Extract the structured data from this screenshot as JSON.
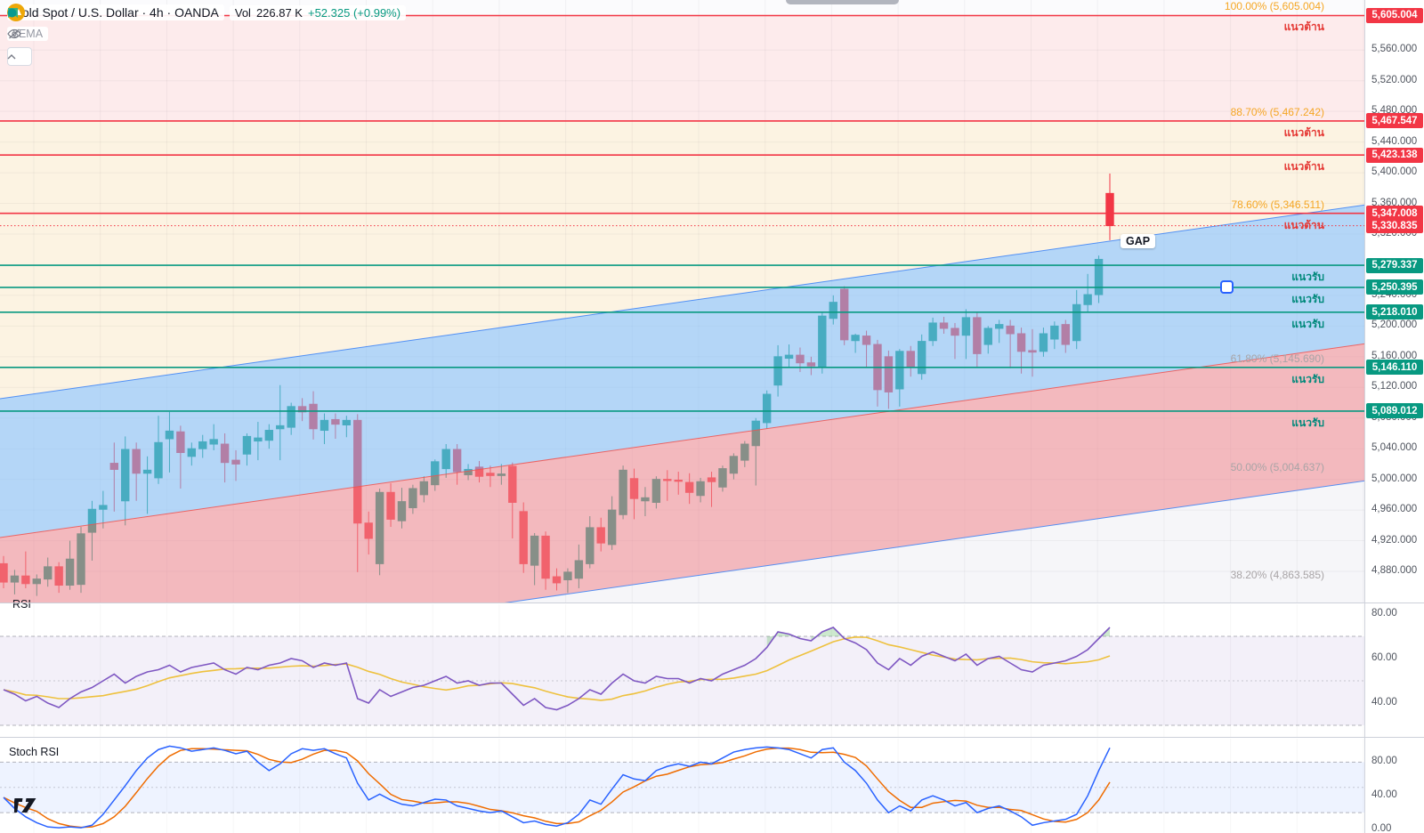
{
  "header": {
    "symbol_title": "Gold Spot / U.S. Dollar · 4h · OANDA",
    "volume_label": "Vol",
    "volume_value": "226.87 K",
    "change_text": "+52.325 (+0.99%)",
    "indicator_label": "3EMA"
  },
  "panes": {
    "rsi_title": "RSI",
    "stoch_title": "Stoch RSI"
  },
  "annotations": {
    "gap_label": "GAP",
    "resistance_label": "แนวต้าน",
    "support_label": "แนวรับ"
  },
  "colors": {
    "up": "#089981",
    "down": "#f23645",
    "resistance_line": "#f23645",
    "support_line": "#089981",
    "badge_red": "#f23645",
    "badge_green": "#089981",
    "rsi_line": "#7e57c2",
    "rsi_ma": "#eec13e",
    "stoch_k": "#2962ff",
    "stoch_d": "#ef6c00",
    "channel_blue": "rgba(125,188,245,0.55)",
    "channel_pink": "rgba(240,134,142,0.55)",
    "zone_pink": "#fdebec",
    "zone_cream": "#fcf3e2"
  },
  "price_axis": {
    "ticks": [
      5560,
      5520,
      5480,
      5440,
      5400,
      5360,
      5320,
      5240,
      5200,
      5160,
      5120,
      5080,
      5040,
      5000,
      4960,
      4920,
      4880
    ],
    "badges": [
      {
        "text": "5,605.004",
        "price": 5605.004,
        "kind": "resistance"
      },
      {
        "text": "5,467.547",
        "price": 5467.547,
        "kind": "resistance"
      },
      {
        "text": "5,423.138",
        "price": 5423.138,
        "kind": "resistance"
      },
      {
        "text": "5,347.008",
        "price": 5347.008,
        "kind": "resistance"
      },
      {
        "text": "5,330.835",
        "price": 5330.835,
        "kind": "price"
      },
      {
        "text": "5,279.337",
        "price": 5279.337,
        "kind": "support"
      },
      {
        "text": "5,250.395",
        "price": 5250.395,
        "kind": "support"
      },
      {
        "text": "5,218.010",
        "price": 5218.01,
        "kind": "support"
      },
      {
        "text": "5,146.110",
        "price": 5146.11,
        "kind": "support"
      },
      {
        "text": "5,089.012",
        "price": 5089.012,
        "kind": "support"
      }
    ]
  },
  "rsi_axis": [
    {
      "v": 80,
      "text": "80.00"
    },
    {
      "v": 60,
      "text": "60.00"
    },
    {
      "v": 40,
      "text": "40.00"
    }
  ],
  "stoch_axis": [
    {
      "v": 80,
      "text": "80.00"
    },
    {
      "v": 40,
      "text": "40.00"
    },
    {
      "v": 0,
      "text": "0.00"
    }
  ],
  "chart_data": {
    "type": "candlestick",
    "title": "Gold Spot / U.S. Dollar · 4h · OANDA",
    "visible_price_range": [
      4840,
      5625
    ],
    "resistance_levels": [
      5605.004,
      5467.547,
      5423.138,
      5347.008
    ],
    "support_levels": [
      5279.337,
      5250.395,
      5218.01,
      5146.11,
      5089.012
    ],
    "current_price": 5330.835,
    "fib_labels": [
      {
        "text": "100.00% (5,605.004)",
        "price": 5605.004,
        "tone": "orange"
      },
      {
        "text": "88.70% (5,467.242)",
        "price": 5467.242,
        "tone": "orange"
      },
      {
        "text": "78.60% (5,346.511)",
        "price": 5346.511,
        "tone": "orange"
      },
      {
        "text": "61.80% (5,145.690)",
        "price": 5145.69,
        "tone": "gray"
      },
      {
        "text": "50.00% (5,004.637)",
        "price": 5004.637,
        "tone": "gray"
      },
      {
        "text": "38.20% (4,863.585)",
        "price": 4863.585,
        "tone": "gray"
      }
    ],
    "candles": [
      [
        4890,
        4900,
        4858,
        4866
      ],
      [
        4866,
        4882,
        4850,
        4874
      ],
      [
        4874,
        4906,
        4858,
        4864
      ],
      [
        4864,
        4876,
        4848,
        4870
      ],
      [
        4870,
        4898,
        4860,
        4886
      ],
      [
        4886,
        4892,
        4852,
        4862
      ],
      [
        4862,
        4920,
        4856,
        4896
      ],
      [
        4863,
        4938,
        4852,
        4929
      ],
      [
        4931,
        4972,
        4894,
        4961
      ],
      [
        4961,
        4985,
        4936,
        4966
      ],
      [
        5021,
        5048,
        4958,
        5013
      ],
      [
        4972,
        5056,
        4940,
        5039
      ],
      [
        5039,
        5048,
        4972,
        5008
      ],
      [
        5008,
        5030,
        4955,
        5012
      ],
      [
        5002,
        5083,
        4994,
        5048
      ],
      [
        5053,
        5088,
        5009,
        5063
      ],
      [
        5062,
        5070,
        4988,
        5035
      ],
      [
        5030,
        5048,
        5018,
        5040
      ],
      [
        5040,
        5058,
        5028,
        5049
      ],
      [
        5046,
        5072,
        5038,
        5052
      ],
      [
        5046,
        5060,
        4996,
        5022
      ],
      [
        5025,
        5038,
        4998,
        5020
      ],
      [
        5033,
        5060,
        5018,
        5056
      ],
      [
        5050,
        5075,
        5025,
        5054
      ],
      [
        5051,
        5072,
        5040,
        5064
      ],
      [
        5066,
        5123,
        5025,
        5070
      ],
      [
        5068,
        5100,
        5058,
        5095
      ],
      [
        5095,
        5106,
        5076,
        5088
      ],
      [
        5098,
        5115,
        5052,
        5066
      ],
      [
        5064,
        5086,
        5046,
        5077
      ],
      [
        5078,
        5086,
        5053,
        5072
      ],
      [
        5071,
        5083,
        5055,
        5077
      ],
      [
        5077,
        5085,
        4879,
        4943
      ],
      [
        4943,
        4958,
        4902,
        4923
      ],
      [
        4890,
        4988,
        4875,
        4983
      ],
      [
        4983,
        4995,
        4938,
        4948
      ],
      [
        4946,
        4989,
        4936,
        4971
      ],
      [
        4963,
        4993,
        4955,
        4988
      ],
      [
        4980,
        5004,
        4970,
        4997
      ],
      [
        4993,
        5026,
        4985,
        5023
      ],
      [
        5014,
        5046,
        5002,
        5039
      ],
      [
        5039,
        5046,
        4993,
        5010
      ],
      [
        5006,
        5020,
        4999,
        5013
      ],
      [
        5016,
        5024,
        4996,
        5004
      ],
      [
        5008,
        5018,
        4990,
        5005
      ],
      [
        5005,
        5020,
        4993,
        5007
      ],
      [
        5017,
        5022,
        4923,
        4970
      ],
      [
        4958,
        4970,
        4878,
        4890
      ],
      [
        4888,
        4930,
        4862,
        4926
      ],
      [
        4926,
        4932,
        4856,
        4871
      ],
      [
        4873,
        4884,
        4855,
        4865
      ],
      [
        4869,
        4884,
        4852,
        4879
      ],
      [
        4871,
        4915,
        4858,
        4894
      ],
      [
        4890,
        4952,
        4884,
        4937
      ],
      [
        4937,
        4950,
        4906,
        4917
      ],
      [
        4915,
        4978,
        4908,
        4960
      ],
      [
        4954,
        5018,
        4948,
        5012
      ],
      [
        5001,
        5014,
        4948,
        4975
      ],
      [
        4972,
        4990,
        4952,
        4976
      ],
      [
        4970,
        5004,
        4962,
        5000
      ],
      [
        5000,
        5012,
        4972,
        4999
      ],
      [
        4999,
        5010,
        4980,
        4998
      ],
      [
        4996,
        5008,
        4968,
        4983
      ],
      [
        4979,
        5002,
        4970,
        4997
      ],
      [
        5002,
        5010,
        4964,
        4997
      ],
      [
        4990,
        5018,
        4984,
        5014
      ],
      [
        5008,
        5034,
        5000,
        5030
      ],
      [
        5025,
        5050,
        5016,
        5046
      ],
      [
        5044,
        5080,
        4992,
        5076
      ],
      [
        5074,
        5116,
        5066,
        5111
      ],
      [
        5123,
        5175,
        5108,
        5160
      ],
      [
        5158,
        5176,
        5146,
        5162
      ],
      [
        5162,
        5172,
        5140,
        5152
      ],
      [
        5152,
        5160,
        5136,
        5148
      ],
      [
        5147,
        5219,
        5138,
        5213
      ],
      [
        5210,
        5240,
        5202,
        5231
      ],
      [
        5248,
        5252,
        5175,
        5182
      ],
      [
        5181,
        5190,
        5165,
        5188
      ],
      [
        5187,
        5194,
        5146,
        5176
      ],
      [
        5176,
        5182,
        5095,
        5117
      ],
      [
        5160,
        5168,
        5092,
        5114
      ],
      [
        5118,
        5170,
        5095,
        5167
      ],
      [
        5167,
        5174,
        5134,
        5146
      ],
      [
        5138,
        5189,
        5130,
        5180
      ],
      [
        5181,
        5211,
        5174,
        5204
      ],
      [
        5204,
        5212,
        5190,
        5197
      ],
      [
        5197,
        5204,
        5157,
        5188
      ],
      [
        5188,
        5222,
        5157,
        5211
      ],
      [
        5211,
        5218,
        5146,
        5164
      ],
      [
        5176,
        5200,
        5164,
        5197
      ],
      [
        5197,
        5208,
        5178,
        5202
      ],
      [
        5200,
        5208,
        5145,
        5190
      ],
      [
        5190,
        5198,
        5138,
        5167
      ],
      [
        5168,
        5196,
        5134,
        5166
      ],
      [
        5167,
        5198,
        5160,
        5190
      ],
      [
        5183,
        5206,
        5170,
        5200
      ],
      [
        5202,
        5208,
        5165,
        5176
      ],
      [
        5181,
        5247,
        5170,
        5228
      ],
      [
        5228,
        5268,
        5218,
        5241
      ],
      [
        5241,
        5292,
        5230,
        5287
      ],
      [
        5373,
        5399,
        5312,
        5331
      ]
    ],
    "rsi": {
      "overbought": 70,
      "oversold": 30,
      "mid": 50,
      "values": [
        46,
        44,
        41,
        43,
        40,
        38,
        42,
        45,
        47,
        50,
        53,
        49,
        52,
        54,
        55,
        57,
        54,
        56,
        57,
        58,
        55,
        53,
        56,
        55,
        57,
        58,
        60,
        59,
        56,
        58,
        57,
        58,
        42,
        40,
        46,
        43,
        45,
        47,
        48,
        50,
        52,
        49,
        50,
        48,
        49,
        49,
        44,
        39,
        42,
        38,
        37,
        39,
        42,
        46,
        44,
        49,
        53,
        50,
        49,
        52,
        51,
        51,
        49,
        51,
        50,
        53,
        55,
        57,
        60,
        65,
        72,
        71,
        69,
        68,
        72,
        74,
        69,
        67,
        64,
        58,
        55,
        60,
        57,
        61,
        63,
        61,
        59,
        62,
        57,
        60,
        61,
        58,
        55,
        54,
        57,
        58,
        59,
        61,
        64,
        69,
        74
      ]
    },
    "stoch": {
      "upper": 80,
      "lower": 20,
      "mid": 50,
      "k": [
        38,
        25,
        15,
        8,
        3,
        2,
        3,
        2,
        5,
        18,
        35,
        52,
        70,
        85,
        95,
        99,
        97,
        93,
        95,
        97,
        94,
        90,
        93,
        80,
        70,
        78,
        90,
        96,
        94,
        96,
        90,
        85,
        55,
        35,
        42,
        35,
        30,
        28,
        32,
        36,
        35,
        28,
        25,
        22,
        20,
        22,
        15,
        8,
        10,
        6,
        4,
        8,
        18,
        35,
        30,
        48,
        65,
        60,
        58,
        70,
        75,
        78,
        75,
        80,
        78,
        85,
        92,
        95,
        97,
        98,
        97,
        95,
        90,
        85,
        95,
        97,
        80,
        70,
        55,
        35,
        20,
        28,
        22,
        35,
        40,
        35,
        28,
        32,
        20,
        25,
        28,
        22,
        15,
        5,
        8,
        10,
        12,
        18,
        40,
        70,
        97
      ]
    }
  }
}
